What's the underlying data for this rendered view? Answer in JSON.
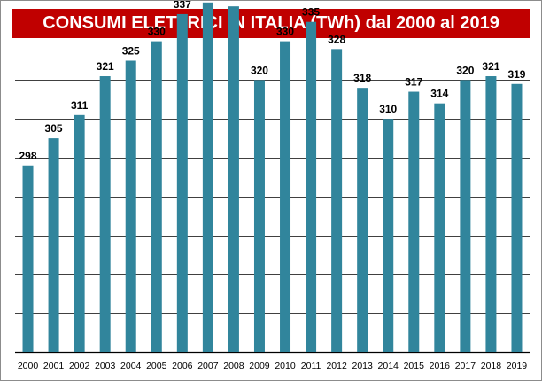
{
  "chart_data": {
    "type": "bar",
    "title": "CONSUMI ELETTRICI IN ITALIA (TWh) dal 2000 al 2019",
    "categories": [
      "2000",
      "2001",
      "2002",
      "2003",
      "2004",
      "2005",
      "2006",
      "2007",
      "2008",
      "2009",
      "2010",
      "2011",
      "2012",
      "2013",
      "2014",
      "2015",
      "2016",
      "2017",
      "2018",
      "2019"
    ],
    "values": [
      298,
      305,
      311,
      321,
      325,
      330,
      337,
      340,
      339,
      320,
      330,
      335,
      328,
      318,
      310,
      317,
      314,
      320,
      321,
      319
    ],
    "ylim": [
      250,
      350
    ],
    "y_grid_step": 10,
    "grid": true,
    "legend": "none",
    "bar_color": "#31859c",
    "grid_color": "#000000",
    "title_bg": "#c00000",
    "title_color": "#ffffff"
  }
}
